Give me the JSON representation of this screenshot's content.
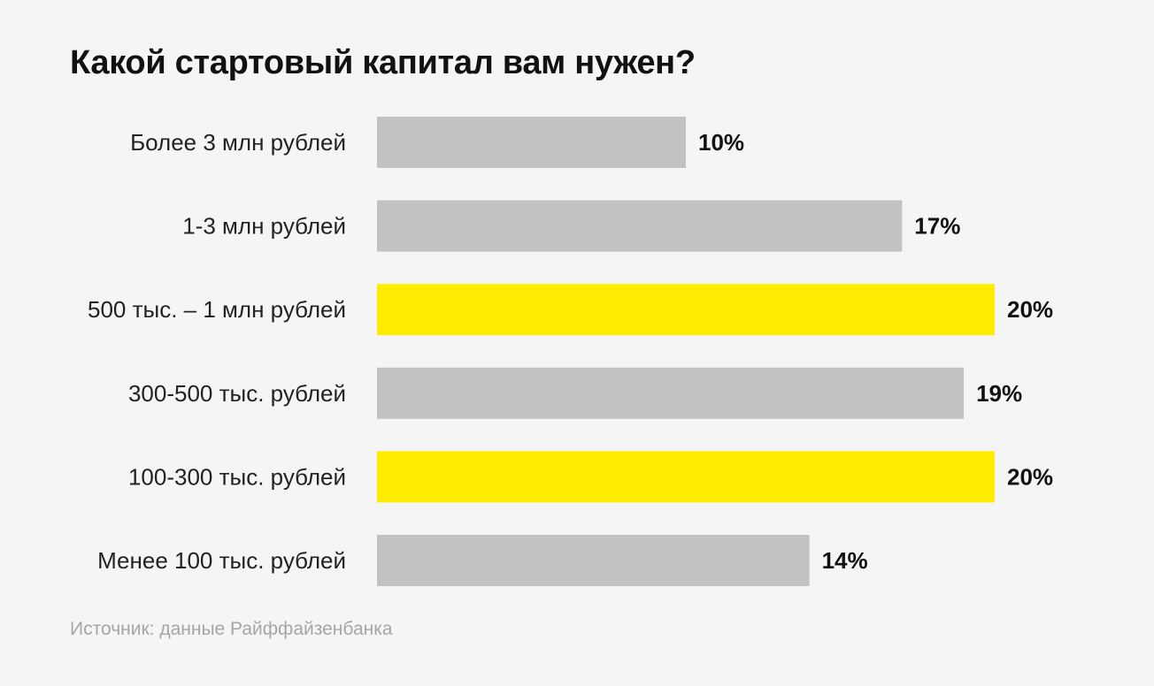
{
  "title": "Какой стартовый капитал вам нужен?",
  "source": "Источник: данные Райффайзенбанка",
  "colors": {
    "default_bar": "#c2c2c2",
    "highlight_bar": "#ffec00",
    "background": "#f5f5f5"
  },
  "chart_data": {
    "type": "bar",
    "orientation": "horizontal",
    "title": "Какой стартовый капитал вам нужен?",
    "categories": [
      "Более 3 млн рублей",
      "1-3 млн рублей",
      "500 тыс. – 1 млн рублей",
      "300-500 тыс. рублей",
      "100-300 тыс. рублей",
      "Менее 100 тыс. рублей"
    ],
    "values": [
      10,
      17,
      20,
      19,
      20,
      14
    ],
    "value_labels": [
      "10%",
      "17%",
      "20%",
      "19%",
      "20%",
      "14%"
    ],
    "highlighted": [
      false,
      false,
      true,
      false,
      true,
      false
    ],
    "unit": "%",
    "xlim": [
      0,
      20
    ],
    "grid": false,
    "legend": "none"
  }
}
